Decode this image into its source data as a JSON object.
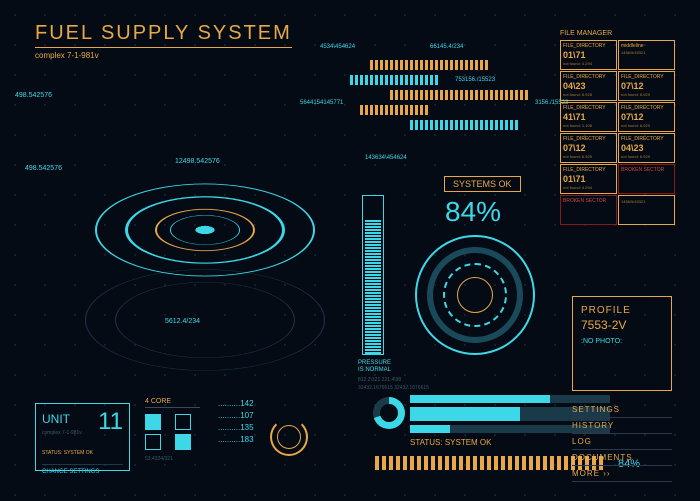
{
  "header": {
    "title": "FUEL SUPPLY SYSTEM",
    "subtitle": "complex 7-1-981v"
  },
  "callouts": {
    "c1": "498.542576",
    "c2": "498.542576",
    "c3": "12498.542576",
    "c4": "5612.4/234"
  },
  "barcode_labels": {
    "b1": "4534\\454624",
    "b2": "66145.4/234",
    "b3": "753156./15523",
    "b4": "5644154145771",
    "b5": "3156./15523"
  },
  "readout_top": "143634\\454624",
  "file_manager": {
    "title": "FILE MANAGER",
    "cells": [
      {
        "title": "FILE_DIRECTORY",
        "val": "01\\71",
        "sub": "not found: 4.294",
        "color": "orange"
      },
      {
        "title": "middleline",
        "val": "",
        "sub": "1456/5/45321",
        "color": "orange"
      },
      {
        "title": "FILE_DIRECTORY",
        "val": "04\\23",
        "sub": "not found: 6.928",
        "color": "orange"
      },
      {
        "title": "FILE_DIRECTORY",
        "val": "07\\12",
        "sub": "not found: 6.929",
        "color": "orange"
      },
      {
        "title": "FILE_DIRECTORY",
        "val": "41\\71",
        "sub": "not found: 1.108",
        "color": "orange"
      },
      {
        "title": "FILE_DIRECTORY",
        "val": "07\\12",
        "sub": "not found: 6.929",
        "color": "orange"
      },
      {
        "title": "FILE_DIRECTORY",
        "val": "07\\12",
        "sub": "not found: 6.929",
        "color": "orange"
      },
      {
        "title": "FILE_DIRECTORY",
        "val": "04\\23",
        "sub": "not found: 6.929",
        "color": "orange"
      },
      {
        "title": "FILE_DIRECTORY",
        "val": "01\\71",
        "sub": "not found: 4.294",
        "color": "orange"
      },
      {
        "title": "BROKEN SECTOR",
        "val": "",
        "sub": "",
        "color": "red"
      },
      {
        "title": "BROKEN SECTOR",
        "val": "",
        "sub": "",
        "color": "red"
      },
      {
        "title": "",
        "val": "",
        "sub": "1456/5/45321",
        "color": "orange"
      }
    ]
  },
  "systems_ok": "SYSTEMS OK",
  "big_percent": "84%",
  "pressure": {
    "label": "PRESSURE\nIS NORMAL",
    "sub1": "812.2\\321   221.4\\98",
    "sub2": "32432.1676615    32432.1676615"
  },
  "bars": [
    70,
    55,
    20
  ],
  "status_ok": "STATUS: SYSTEM OK",
  "stripe_pct": "84%",
  "profile": {
    "title": "PROFILE",
    "id": "7553-2V",
    "nophoto": ":NO PHOTO:"
  },
  "menu": [
    "SETTINGS",
    "HISTORY",
    "LOG",
    "DOCUMENTS",
    "MORE ››"
  ],
  "unit": {
    "label": "UNIT",
    "num": "11",
    "sub": "complex 7-1-981v",
    "status": "STATUS: SYSTEM OK",
    "change": "CHANGE SETTINGS"
  },
  "fourcore": {
    "title": "4 CORE",
    "filled": [
      true,
      false,
      false,
      true
    ],
    "sub": "53.4324/321"
  },
  "numlist": [
    "142",
    "107",
    "135",
    "183"
  ],
  "colors": {
    "cyan": "#3dd8e8",
    "orange": "#e8a847",
    "bg": "#050b15"
  }
}
